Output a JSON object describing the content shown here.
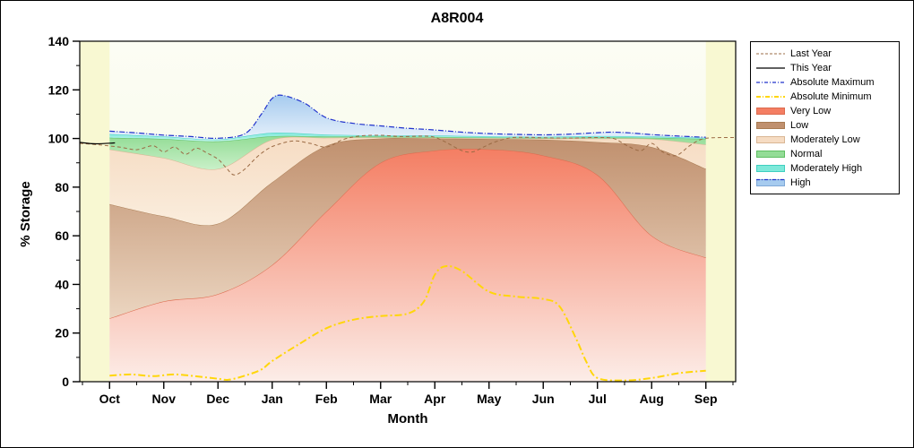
{
  "frame": {
    "bg": "#ffffff",
    "border_color": "#000000"
  },
  "chart_data": {
    "type": "area",
    "title": "A8R004",
    "xlabel": "Month",
    "ylabel": "% Storage",
    "categories": [
      "Oct",
      "Nov",
      "Dec",
      "Jan",
      "Feb",
      "Mar",
      "Apr",
      "May",
      "Jun",
      "Jul",
      "Aug",
      "Sep"
    ],
    "ylim": [
      0,
      140
    ],
    "ytick_major": 20,
    "ytick_minor": 10,
    "x_range": [
      -0.55,
      11.55
    ],
    "grid": false,
    "legend_position": "right",
    "colors": {
      "plot_bg": "#F8F8D2",
      "data_bg_top": "#FCFDF4",
      "data_bg_bottom": "#F3F7E3",
      "axis": "#000000"
    },
    "bands": [
      {
        "label": "Very Low",
        "fill_top": "#F47E63",
        "fill_bottom": "#FCEDE8",
        "edge": "#DC6A4E",
        "values": [
          26,
          33,
          36,
          48,
          70,
          90,
          95,
          95.5,
          93,
          85,
          60,
          51
        ]
      },
      {
        "label": "Low",
        "fill_top": "#C0906E",
        "fill_bottom": "#EBD5C0",
        "edge": "#A87B52",
        "values": [
          73,
          68,
          65,
          82,
          97,
          100,
          100,
          99.8,
          99.5,
          98.5,
          96.5,
          87.5
        ]
      },
      {
        "label": "Moderately Low",
        "fill_top": "#F6DCC3",
        "fill_bottom": "#FAEDDD",
        "edge": "#D9B694",
        "values": [
          95.5,
          92,
          87.5,
          99.5,
          100.3,
          100.4,
          100.3,
          100.1,
          100,
          100,
          99.8,
          97.5
        ]
      },
      {
        "label": "Normal",
        "fill_top": "#93DC96",
        "fill_bottom": "#C9F0C8",
        "edge": "#5FBE62",
        "values": [
          100.3,
          99.8,
          98.8,
          100.9,
          100.8,
          100.8,
          100.6,
          100.4,
          100.3,
          100.4,
          100.3,
          99.8
        ]
      },
      {
        "label": "Moderately High",
        "fill_top": "#7EE9DA",
        "fill_bottom": "#C3F5EE",
        "edge": "#3FCFC0",
        "values": [
          101.8,
          100.8,
          99.6,
          102.3,
          101.6,
          101.2,
          101.2,
          100.9,
          100.7,
          101,
          100.8,
          100.2
        ]
      },
      {
        "label": "High",
        "fill_top": "#A6CBEF",
        "fill_bottom": "#E7F1FB",
        "edge": "none",
        "x": [
          0,
          0.5,
          1,
          1.5,
          2,
          2.5,
          2.8,
          3,
          3.2,
          3.6,
          4,
          4.5,
          5,
          5.5,
          6,
          6.5,
          7,
          7.5,
          8,
          8.5,
          9,
          9.3,
          9.6,
          10,
          10.5,
          11
        ],
        "values": [
          103,
          102.3,
          101.4,
          100.8,
          100.1,
          102,
          110,
          116.5,
          117.7,
          114.5,
          108.5,
          106.2,
          105.2,
          104.2,
          103.5,
          102.6,
          102,
          101.7,
          101.5,
          101.8,
          102.4,
          102.6,
          102.3,
          101.6,
          101,
          100.5
        ]
      }
    ],
    "lines": [
      {
        "label": "Last Year",
        "color": "#9B6B45",
        "width": 1,
        "dash": "4 3",
        "x": [
          -0.55,
          -0.2,
          0.2,
          0.5,
          0.8,
          1,
          1.2,
          1.4,
          1.6,
          1.8,
          2,
          2.15,
          2.3,
          2.5,
          2.7,
          2.9,
          3.1,
          3.4,
          3.7,
          4,
          4.3,
          4.6,
          5,
          5.4,
          5.8,
          6,
          6.2,
          6.5,
          6.7,
          6.9,
          7.1,
          7.4,
          7.7,
          8,
          8.5,
          9,
          9.3,
          9.55,
          9.8,
          10,
          10.2,
          10.45,
          10.7,
          10.9,
          11.1,
          11.55
        ],
        "values": [
          98,
          97.4,
          96.4,
          95.4,
          97,
          94.5,
          96.5,
          93.5,
          96,
          94,
          91.5,
          88,
          85,
          87.5,
          92,
          95.5,
          97.5,
          99,
          98,
          96.5,
          99.5,
          101,
          101.3,
          100.8,
          101,
          100.5,
          98.5,
          95,
          94.5,
          96.5,
          98.5,
          100.3,
          100.5,
          100.3,
          100.2,
          100.4,
          100,
          97,
          95,
          98,
          94.5,
          93,
          97,
          99.5,
          100.3,
          100.4
        ]
      },
      {
        "label": "This Year",
        "color": "#000000",
        "width": 1.2,
        "dash": "",
        "x": [
          -0.55,
          -0.25,
          0.1
        ],
        "values": [
          98.4,
          97.8,
          98.2
        ]
      },
      {
        "label": "Absolute Maximum",
        "color": "#2233CC",
        "width": 1.2,
        "dash": "6 2 1 2",
        "x": [
          0,
          0.5,
          1,
          1.5,
          2,
          2.5,
          2.8,
          3,
          3.2,
          3.6,
          4,
          4.5,
          5,
          5.5,
          6,
          6.5,
          7,
          7.5,
          8,
          8.5,
          9,
          9.3,
          9.6,
          10,
          10.5,
          11
        ],
        "values": [
          103,
          102.3,
          101.4,
          100.8,
          100.1,
          102,
          110,
          116.5,
          117.7,
          114.5,
          108.5,
          106.2,
          105.2,
          104.2,
          103.5,
          102.6,
          102,
          101.7,
          101.5,
          101.8,
          102.4,
          102.6,
          102.3,
          101.6,
          101,
          100.5
        ]
      },
      {
        "label": "Absolute Minimum",
        "color": "#FFD60A",
        "width": 2,
        "dash": "8 3 2 3",
        "x": [
          0,
          0.4,
          0.8,
          1.2,
          1.6,
          2,
          2.2,
          2.5,
          2.8,
          3,
          3.5,
          4,
          4.5,
          5,
          5.5,
          5.8,
          6,
          6.2,
          6.5,
          7,
          7.5,
          8,
          8.3,
          8.6,
          8.8,
          9,
          9.5,
          10,
          10.5,
          11
        ],
        "values": [
          2.5,
          3,
          2.3,
          3,
          2.2,
          1.2,
          0.8,
          2.5,
          5,
          8.5,
          15.5,
          22,
          25.5,
          27,
          28,
          33,
          44,
          47.5,
          45.5,
          37,
          35,
          34,
          31,
          18,
          8,
          1.5,
          0.5,
          1.5,
          3.5,
          4.5
        ]
      }
    ],
    "legend": {
      "items": [
        {
          "label": "Last Year",
          "type": "line",
          "color": "#9B6B45",
          "dash": "3 2",
          "width": 1
        },
        {
          "label": "This Year",
          "type": "line",
          "color": "#000000",
          "dash": "",
          "width": 1.2
        },
        {
          "label": "Absolute Maximum",
          "type": "line",
          "color": "#2233CC",
          "dash": "4 2 1 2",
          "width": 1.2
        },
        {
          "label": "Absolute Minimum",
          "type": "line",
          "color": "#FFD60A",
          "dash": "5 2 1 2",
          "width": 2
        },
        {
          "label": "Very Low",
          "type": "band",
          "fill": "#F47E63",
          "edge": "#DC6A4E"
        },
        {
          "label": "Low",
          "type": "band",
          "fill": "#C0906E",
          "edge": "#A87B52"
        },
        {
          "label": "Moderately Low",
          "type": "band",
          "fill": "#F6DCC3",
          "edge": "#D9B694"
        },
        {
          "label": "Normal",
          "type": "band",
          "fill": "#93DC96",
          "edge": "#5FBE62"
        },
        {
          "label": "Moderately High",
          "type": "band",
          "fill": "#7EE9DA",
          "edge": "#3FCFC0"
        },
        {
          "label": "High",
          "type": "band-line",
          "fill": "#A6CBEF",
          "edge": "#7FA8D8",
          "line": "#2233CC",
          "dash": "4 2 1 2"
        }
      ]
    }
  }
}
